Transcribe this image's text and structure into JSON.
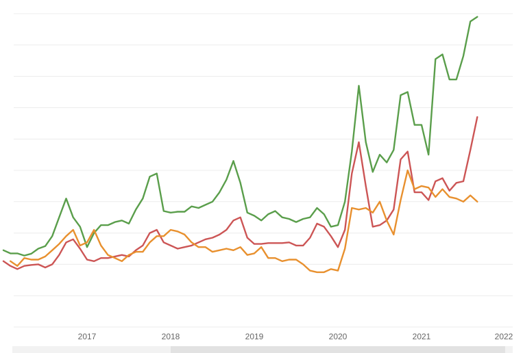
{
  "chart_data": {
    "type": "line",
    "title": "",
    "xlabel": "",
    "ylabel": "",
    "x_ticks": [
      "2017",
      "2018",
      "2019",
      "2020",
      "2021",
      "2022"
    ],
    "grid": true,
    "legend": "none",
    "y_axis_labels_visible": false,
    "ylim": [
      0,
      100
    ],
    "xlim": [
      "2016-01",
      "2022-01"
    ],
    "series": [
      {
        "color": "#5a9e4b",
        "points": [
          [
            "2016-01",
            24.5
          ],
          [
            "2016-02",
            23.5
          ],
          [
            "2016-03",
            23.5
          ],
          [
            "2016-04",
            22.8
          ],
          [
            "2016-05",
            23.4
          ],
          [
            "2016-06",
            25.0
          ],
          [
            "2016-07",
            25.8
          ],
          [
            "2016-08",
            29.0
          ],
          [
            "2016-09",
            35.0
          ],
          [
            "2016-10",
            41.0
          ],
          [
            "2016-11",
            35.0
          ],
          [
            "2016-12",
            32.0
          ],
          [
            "2017-01",
            25.5
          ],
          [
            "2017-02",
            30.0
          ],
          [
            "2017-03",
            32.5
          ],
          [
            "2017-04",
            32.5
          ],
          [
            "2017-05",
            33.5
          ],
          [
            "2017-06",
            34.0
          ],
          [
            "2017-07",
            33.0
          ],
          [
            "2017-08",
            37.5
          ],
          [
            "2017-09",
            41.0
          ],
          [
            "2017-10",
            48.0
          ],
          [
            "2017-11",
            49.0
          ],
          [
            "2017-12",
            37.0
          ],
          [
            "2018-01",
            36.5
          ],
          [
            "2018-02",
            36.8
          ],
          [
            "2018-03",
            36.8
          ],
          [
            "2018-04",
            38.5
          ],
          [
            "2018-05",
            38.0
          ],
          [
            "2018-06",
            39.0
          ],
          [
            "2018-07",
            40.0
          ],
          [
            "2018-08",
            43.0
          ],
          [
            "2018-09",
            47.0
          ],
          [
            "2018-10",
            53.0
          ],
          [
            "2018-11",
            46.0
          ],
          [
            "2018-12",
            36.5
          ],
          [
            "2019-01",
            35.5
          ],
          [
            "2019-02",
            34.0
          ],
          [
            "2019-03",
            36.0
          ],
          [
            "2019-04",
            37.0
          ],
          [
            "2019-05",
            35.0
          ],
          [
            "2019-06",
            34.5
          ],
          [
            "2019-07",
            33.5
          ],
          [
            "2019-08",
            34.5
          ],
          [
            "2019-09",
            35.0
          ],
          [
            "2019-10",
            38.0
          ],
          [
            "2019-11",
            36.0
          ],
          [
            "2019-12",
            32.0
          ],
          [
            "2020-01",
            32.5
          ],
          [
            "2020-02",
            40.0
          ],
          [
            "2020-03",
            56.0
          ],
          [
            "2020-04",
            77.0
          ],
          [
            "2020-05",
            59.0
          ],
          [
            "2020-06",
            49.5
          ],
          [
            "2020-07",
            55.0
          ],
          [
            "2020-08",
            52.5
          ],
          [
            "2020-09",
            56.5
          ],
          [
            "2020-10",
            74.0
          ],
          [
            "2020-11",
            75.0
          ],
          [
            "2020-12",
            64.5
          ],
          [
            "2021-01",
            64.5
          ],
          [
            "2021-02",
            55.0
          ],
          [
            "2021-03",
            85.5
          ],
          [
            "2021-04",
            87.0
          ],
          [
            "2021-05",
            79.0
          ],
          [
            "2021-06",
            79.0
          ],
          [
            "2021-07",
            86.5
          ],
          [
            "2021-08",
            97.5
          ],
          [
            "2021-09",
            99.0
          ]
        ]
      },
      {
        "color": "#cc5555",
        "points": [
          [
            "2016-01",
            21.0
          ],
          [
            "2016-02",
            19.5
          ],
          [
            "2016-03",
            18.5
          ],
          [
            "2016-04",
            19.5
          ],
          [
            "2016-05",
            19.8
          ],
          [
            "2016-06",
            20.0
          ],
          [
            "2016-07",
            19.0
          ],
          [
            "2016-08",
            20.0
          ],
          [
            "2016-09",
            23.0
          ],
          [
            "2016-10",
            27.0
          ],
          [
            "2016-11",
            28.0
          ],
          [
            "2016-12",
            25.0
          ],
          [
            "2017-01",
            21.5
          ],
          [
            "2017-02",
            21.0
          ],
          [
            "2017-03",
            22.0
          ],
          [
            "2017-04",
            22.0
          ],
          [
            "2017-05",
            22.5
          ],
          [
            "2017-06",
            23.0
          ],
          [
            "2017-07",
            22.5
          ],
          [
            "2017-08",
            24.5
          ],
          [
            "2017-09",
            26.0
          ],
          [
            "2017-10",
            30.0
          ],
          [
            "2017-11",
            31.0
          ],
          [
            "2017-12",
            27.0
          ],
          [
            "2018-01",
            26.0
          ],
          [
            "2018-02",
            25.0
          ],
          [
            "2018-03",
            25.5
          ],
          [
            "2018-04",
            26.0
          ],
          [
            "2018-05",
            27.0
          ],
          [
            "2018-06",
            28.0
          ],
          [
            "2018-07",
            28.5
          ],
          [
            "2018-08",
            29.5
          ],
          [
            "2018-09",
            31.0
          ],
          [
            "2018-10",
            34.0
          ],
          [
            "2018-11",
            35.0
          ],
          [
            "2018-12",
            28.5
          ],
          [
            "2019-01",
            26.5
          ],
          [
            "2019-02",
            26.5
          ],
          [
            "2019-03",
            26.8
          ],
          [
            "2019-04",
            26.8
          ],
          [
            "2019-05",
            26.8
          ],
          [
            "2019-06",
            27.0
          ],
          [
            "2019-07",
            26.0
          ],
          [
            "2019-08",
            26.0
          ],
          [
            "2019-09",
            28.5
          ],
          [
            "2019-10",
            33.0
          ],
          [
            "2019-11",
            32.0
          ],
          [
            "2019-12",
            29.0
          ],
          [
            "2020-01",
            25.5
          ],
          [
            "2020-02",
            31.0
          ],
          [
            "2020-03",
            49.0
          ],
          [
            "2020-04",
            59.0
          ],
          [
            "2020-05",
            45.0
          ],
          [
            "2020-06",
            32.0
          ],
          [
            "2020-07",
            32.5
          ],
          [
            "2020-08",
            34.0
          ],
          [
            "2020-09",
            37.5
          ],
          [
            "2020-10",
            53.5
          ],
          [
            "2020-11",
            56.0
          ],
          [
            "2020-12",
            43.0
          ],
          [
            "2021-01",
            43.0
          ],
          [
            "2021-02",
            40.5
          ],
          [
            "2021-03",
            46.5
          ],
          [
            "2021-04",
            47.5
          ],
          [
            "2021-05",
            43.5
          ],
          [
            "2021-06",
            46.0
          ],
          [
            "2021-07",
            46.5
          ],
          [
            "2021-08",
            56.5
          ],
          [
            "2021-09",
            67.0
          ]
        ]
      },
      {
        "color": "#e8902e",
        "points": [
          [
            "2016-02",
            21.0
          ],
          [
            "2016-03",
            19.5
          ],
          [
            "2016-04",
            22.0
          ],
          [
            "2016-05",
            21.5
          ],
          [
            "2016-06",
            21.5
          ],
          [
            "2016-07",
            22.5
          ],
          [
            "2016-08",
            24.5
          ],
          [
            "2016-09",
            26.5
          ],
          [
            "2016-10",
            29.0
          ],
          [
            "2016-11",
            31.0
          ],
          [
            "2016-12",
            26.0
          ],
          [
            "2017-01",
            27.0
          ],
          [
            "2017-02",
            31.0
          ],
          [
            "2017-03",
            26.0
          ],
          [
            "2017-04",
            23.0
          ],
          [
            "2017-05",
            22.0
          ],
          [
            "2017-06",
            21.0
          ],
          [
            "2017-07",
            23.0
          ],
          [
            "2017-08",
            24.0
          ],
          [
            "2017-09",
            24.0
          ],
          [
            "2017-10",
            27.0
          ],
          [
            "2017-11",
            29.0
          ],
          [
            "2017-12",
            29.0
          ],
          [
            "2018-01",
            31.0
          ],
          [
            "2018-02",
            30.5
          ],
          [
            "2018-03",
            29.5
          ],
          [
            "2018-04",
            27.0
          ],
          [
            "2018-05",
            25.5
          ],
          [
            "2018-06",
            25.5
          ],
          [
            "2018-07",
            24.0
          ],
          [
            "2018-08",
            24.5
          ],
          [
            "2018-09",
            25.0
          ],
          [
            "2018-10",
            24.5
          ],
          [
            "2018-11",
            25.5
          ],
          [
            "2018-12",
            23.0
          ],
          [
            "2019-01",
            23.5
          ],
          [
            "2019-02",
            25.5
          ],
          [
            "2019-03",
            22.0
          ],
          [
            "2019-04",
            22.0
          ],
          [
            "2019-05",
            21.0
          ],
          [
            "2019-06",
            21.5
          ],
          [
            "2019-07",
            21.5
          ],
          [
            "2019-08",
            20.0
          ],
          [
            "2019-09",
            18.0
          ],
          [
            "2019-10",
            17.5
          ],
          [
            "2019-11",
            17.5
          ],
          [
            "2019-12",
            18.5
          ],
          [
            "2020-01",
            18.0
          ],
          [
            "2020-02",
            25.0
          ],
          [
            "2020-03",
            38.0
          ],
          [
            "2020-04",
            37.5
          ],
          [
            "2020-05",
            38.0
          ],
          [
            "2020-06",
            36.5
          ],
          [
            "2020-07",
            40.0
          ],
          [
            "2020-08",
            34.0
          ],
          [
            "2020-09",
            29.5
          ],
          [
            "2020-10",
            40.5
          ],
          [
            "2020-11",
            50.0
          ],
          [
            "2020-12",
            44.0
          ],
          [
            "2021-01",
            45.0
          ],
          [
            "2021-02",
            44.5
          ],
          [
            "2021-03",
            41.5
          ],
          [
            "2021-04",
            44.0
          ],
          [
            "2021-05",
            41.5
          ],
          [
            "2021-06",
            41.0
          ],
          [
            "2021-07",
            40.0
          ],
          [
            "2021-08",
            42.0
          ],
          [
            "2021-09",
            40.0
          ]
        ]
      }
    ]
  },
  "scrollbar": {
    "window_start": "2018-01",
    "window_end": "2022-01"
  }
}
